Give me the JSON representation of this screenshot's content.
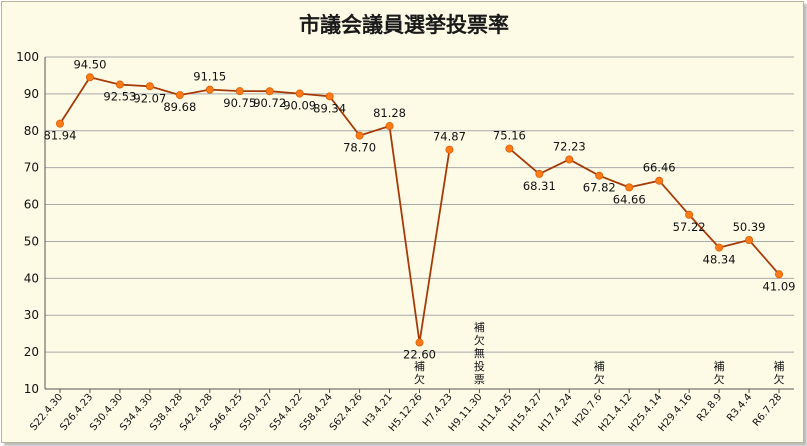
{
  "chart_data": {
    "type": "line",
    "title": "市議会議員選挙投票率",
    "xlabel": "",
    "ylabel": "",
    "ylim": [
      10,
      100
    ],
    "yticks": [
      10,
      20,
      30,
      40,
      50,
      60,
      70,
      80,
      90,
      100
    ],
    "grid": true,
    "legend": "none",
    "series_color": "#a63b08",
    "marker_color": "#ff7a18",
    "background": "#fdfbe6",
    "categories": [
      "S22.4.30",
      "S26.4.23",
      "S30.4.30",
      "S34.4.30",
      "S38.4.28",
      "S42.4.28",
      "S46.4.25",
      "S50.4.27",
      "S54.4.22",
      "S58.4.24",
      "S62.4.26",
      "H3.4.21",
      "H5.12.26",
      "H7.4.23",
      "H9.11.30",
      "H11.4.25",
      "H15.4.27",
      "H17.4.24",
      "H20.7.6",
      "H21.4.12",
      "H25.4.14",
      "H29.4.16",
      "R2.8.9",
      "R3.4.4",
      "R6.7.28"
    ],
    "series": [
      {
        "values": [
          81.94,
          94.5,
          92.53,
          92.07,
          89.68,
          91.15,
          90.75,
          90.72,
          90.09,
          89.34,
          78.7,
          81.28,
          22.6,
          74.87,
          null,
          75.16,
          68.31,
          72.23,
          67.82,
          64.66,
          66.46,
          57.22,
          48.34,
          50.39,
          41.09
        ],
        "labels": [
          "81.94",
          "94.50",
          "92.53",
          "92.07",
          "89.68",
          "91.15",
          "90.75",
          "90.72",
          "90.09",
          "89.34",
          "78.70",
          "81.28",
          "22.60",
          "74.87",
          "",
          "75.16",
          "68.31",
          "72.23",
          "67.82",
          "64.66",
          "66.46",
          "57.22",
          "48.34",
          "50.39",
          "41.09"
        ]
      }
    ],
    "annotations": [
      {
        "category": "H5.12.26",
        "text": "補欠"
      },
      {
        "category": "H9.11.30",
        "text": "補欠無投票"
      },
      {
        "category": "H20.7.6",
        "text": "補欠"
      },
      {
        "category": "R2.8.9",
        "text": "補欠"
      },
      {
        "category": "R6.7.28",
        "text": "補欠"
      }
    ]
  }
}
